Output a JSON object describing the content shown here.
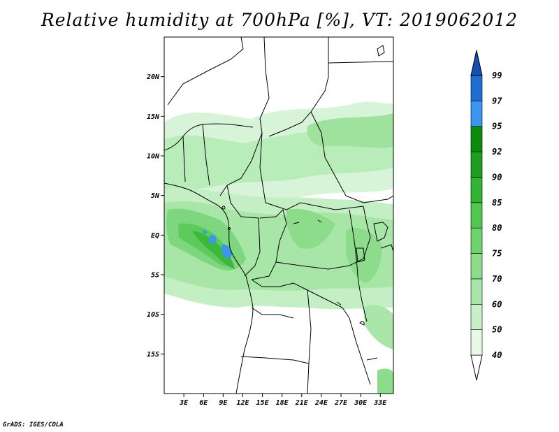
{
  "title": "Relative humidity at 700hPa [%], VT: 2019062012",
  "credit": "GrADS: IGES/COLA",
  "map": {
    "lon_range": [
      0,
      35
    ],
    "lat_range": [
      -20,
      25
    ],
    "lat_ticks": [
      {
        "value": 20,
        "label": "20N"
      },
      {
        "value": 15,
        "label": "15N"
      },
      {
        "value": 10,
        "label": "10N"
      },
      {
        "value": 5,
        "label": "5N"
      },
      {
        "value": 0,
        "label": "EQ"
      },
      {
        "value": -5,
        "label": "5S"
      },
      {
        "value": -10,
        "label": "10S"
      },
      {
        "value": -15,
        "label": "15S"
      }
    ],
    "lon_ticks": [
      {
        "value": 3,
        "label": "3E"
      },
      {
        "value": 6,
        "label": "6E"
      },
      {
        "value": 9,
        "label": "9E"
      },
      {
        "value": 12,
        "label": "12E"
      },
      {
        "value": 15,
        "label": "15E"
      },
      {
        "value": 18,
        "label": "18E"
      },
      {
        "value": 21,
        "label": "21E"
      },
      {
        "value": 24,
        "label": "24E"
      },
      {
        "value": 27,
        "label": "27E"
      },
      {
        "value": 30,
        "label": "30E"
      },
      {
        "value": 33,
        "label": "33E"
      }
    ]
  },
  "colorbar": {
    "levels": [
      "40",
      "50",
      "60",
      "70",
      "75",
      "80",
      "85",
      "90",
      "92",
      "95",
      "97",
      "99"
    ],
    "colors": [
      "#ffffff",
      "#e6fae6",
      "#c8f0c8",
      "#aae6aa",
      "#8cdc8c",
      "#6ed26e",
      "#50c850",
      "#32b432",
      "#1e9e1e",
      "#0a8c0a",
      "#3c96f0",
      "#1e6ed2",
      "#1450b4"
    ]
  }
}
